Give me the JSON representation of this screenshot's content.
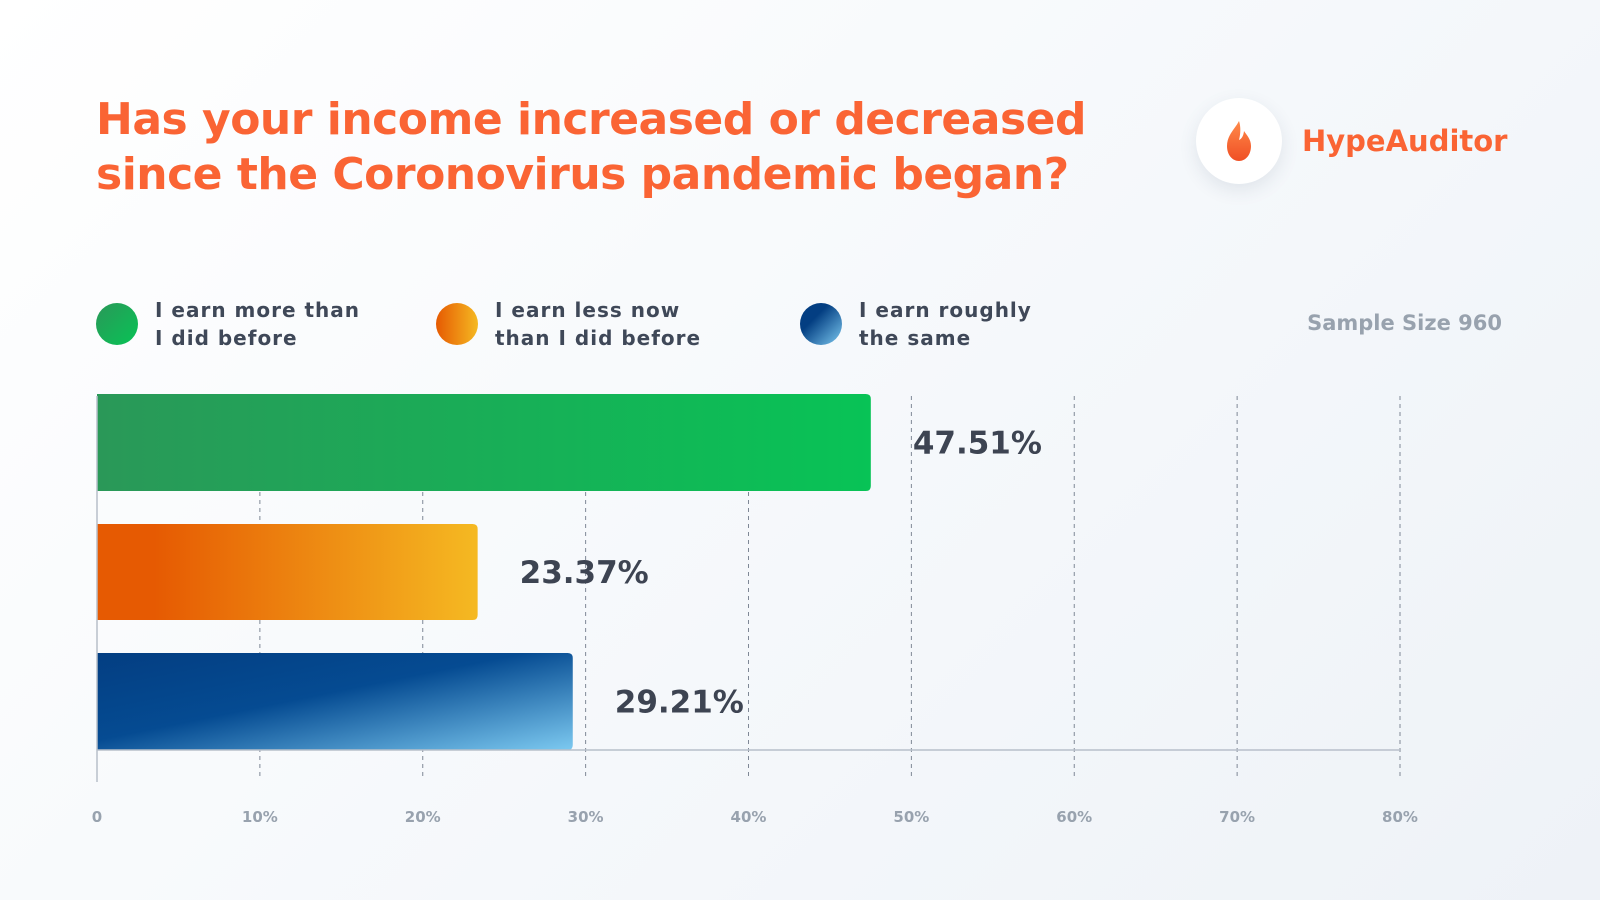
{
  "title": "Has your income increased or decreased since the Coronovirus pandemic began?",
  "brand": {
    "name": "HypeAuditor",
    "icon": "flame-icon",
    "color": "#fa6434"
  },
  "sample_size": "Sample Size 960",
  "legend": [
    {
      "label": "I earn more than I did before",
      "icon": "green-dot"
    },
    {
      "label": "I earn less now than I did before",
      "icon": "orange-dot"
    },
    {
      "label": "I earn roughly the same",
      "icon": "blue-dot"
    }
  ],
  "chart_data": {
    "type": "bar",
    "orientation": "horizontal",
    "title": "Has your income increased or decreased since the Coronovirus pandemic began?",
    "categories": [
      "I earn more than I did before",
      "I earn less now than I did before",
      "I earn roughly the same"
    ],
    "values": [
      47.51,
      23.37,
      29.21
    ],
    "value_labels": [
      "47.51%",
      "23.37%",
      "29.21%"
    ],
    "xlim": [
      0,
      80
    ],
    "xticks": [
      0,
      10,
      20,
      30,
      40,
      50,
      60,
      70,
      80
    ],
    "xtick_labels": [
      "0",
      "10%",
      "20%",
      "30%",
      "40%",
      "50%",
      "60%",
      "70%",
      "80%"
    ],
    "grid": true,
    "legend_position": "top",
    "colors": {
      "more": [
        "#2a9858",
        "#08c356"
      ],
      "less": [
        "#e65a02",
        "#f5b922"
      ],
      "same": [
        "#033e82",
        "#7cc9f0"
      ]
    }
  }
}
